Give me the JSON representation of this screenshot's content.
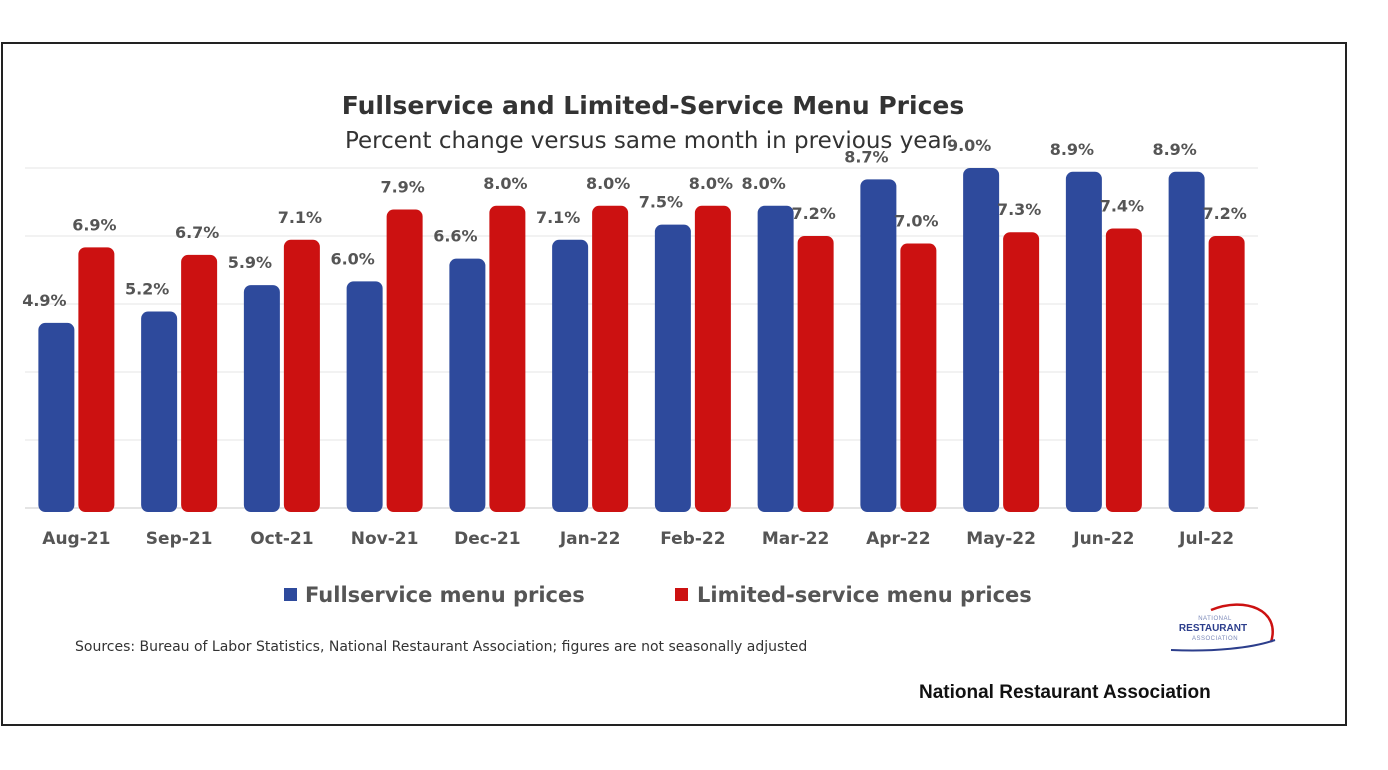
{
  "chart_data": {
    "type": "bar",
    "title": "Fullservice and Limited-Service Menu Prices",
    "subtitle": "Percent change versus same month in previous year",
    "categories": [
      "Aug-21",
      "Sep-21",
      "Oct-21",
      "Nov-21",
      "Dec-21",
      "Jan-22",
      "Feb-22",
      "Mar-22",
      "Apr-22",
      "May-22",
      "Jun-22",
      "Jul-22"
    ],
    "series": [
      {
        "name": "Fullservice menu prices",
        "color": "#2e4a9c",
        "values": [
          4.9,
          5.2,
          5.9,
          6.0,
          6.6,
          7.1,
          7.5,
          8.0,
          8.7,
          9.0,
          8.9,
          8.9
        ],
        "labels": [
          "4.9%",
          "5.2%",
          "5.9%",
          "6.0%",
          "6.6%",
          "7.1%",
          "7.5%",
          "8.0%",
          "8.7%",
          "9.0%",
          "8.9%",
          "8.9%"
        ]
      },
      {
        "name": "Limited-service menu prices",
        "color": "#cc1111",
        "values": [
          6.9,
          6.7,
          7.1,
          7.9,
          8.0,
          8.0,
          8.0,
          7.2,
          7.0,
          7.3,
          7.4,
          7.2
        ],
        "labels": [
          "6.9%",
          "6.7%",
          "7.1%",
          "7.9%",
          "8.0%",
          "8.0%",
          "8.0%",
          "7.2%",
          "7.0%",
          "7.3%",
          "7.4%",
          "7.2%"
        ]
      }
    ],
    "ylim": [
      0,
      9
    ],
    "grid": true,
    "legend": "bottom"
  },
  "source_note": "Sources: Bureau of Labor Statistics, National Restaurant Association; figures are not seasonally adjusted",
  "logo": {
    "line1": "NATIONAL",
    "line2": "RESTAURANT",
    "line3": "ASSOCIATION"
  },
  "brand_text": "National Restaurant Association"
}
